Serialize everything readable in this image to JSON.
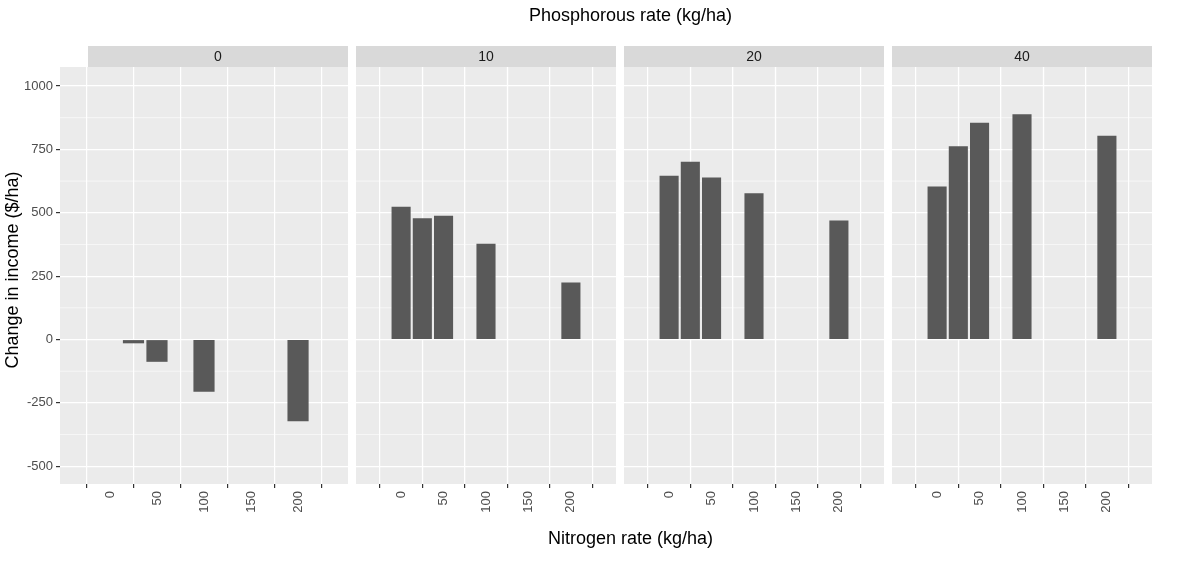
{
  "chart_data": [
    {
      "type": "bar",
      "title": "0",
      "annotations": [
        "Phosphorous rate (kg/ha)",
        "Nitrogen rate (kg/ha)"
      ],
      "ylabel": "Change in income ($/ha)",
      "x": [
        25,
        50,
        100,
        200
      ],
      "values": [
        -15,
        -88,
        -206,
        -322
      ],
      "color": "#595959",
      "xlim": [
        -22.5,
        222.5
      ],
      "xticks": [
        0,
        50,
        100,
        150,
        200
      ],
      "ylim": [
        -570,
        1075
      ],
      "yticks": [
        -500,
        -250,
        0,
        250,
        500,
        750,
        1000
      ],
      "grid": true
    },
    {
      "type": "bar",
      "title": "10",
      "x": [
        0,
        25,
        50,
        100,
        200
      ],
      "values": [
        524,
        478,
        488,
        378,
        225
      ],
      "color": "#595959",
      "xlim": [
        -22.5,
        222.5
      ],
      "xticks": [
        0,
        50,
        100,
        150,
        200
      ],
      "ylim": [
        -570,
        1075
      ],
      "yticks": [
        -500,
        -250,
        0,
        250,
        500,
        750,
        1000
      ],
      "grid": true,
      "tick_labels": "x"
    },
    {
      "type": "bar",
      "title": "20",
      "x": [
        0,
        25,
        50,
        100,
        200
      ],
      "values": [
        646,
        701,
        639,
        577,
        469
      ],
      "color": "#595959",
      "xlim": [
        -22.5,
        222.5
      ],
      "xticks": [
        0,
        50,
        100,
        150,
        200
      ],
      "ylim": [
        -570,
        1075
      ],
      "yticks": [
        -500,
        -250,
        0,
        250,
        500,
        750,
        1000
      ],
      "grid": true,
      "tick_labels": "x"
    },
    {
      "type": "bar",
      "title": "40",
      "x": [
        0,
        25,
        50,
        100,
        200
      ],
      "values": [
        604,
        762,
        855,
        889,
        804
      ],
      "color": "#595959",
      "xlim": [
        -22.5,
        222.5
      ],
      "xticks": [
        0,
        50,
        100,
        150,
        200
      ],
      "ylim": [
        -570,
        1075
      ],
      "yticks": [
        -500,
        -250,
        0,
        250,
        500,
        750,
        1000
      ],
      "grid": true,
      "tick_labels": "x"
    }
  ]
}
